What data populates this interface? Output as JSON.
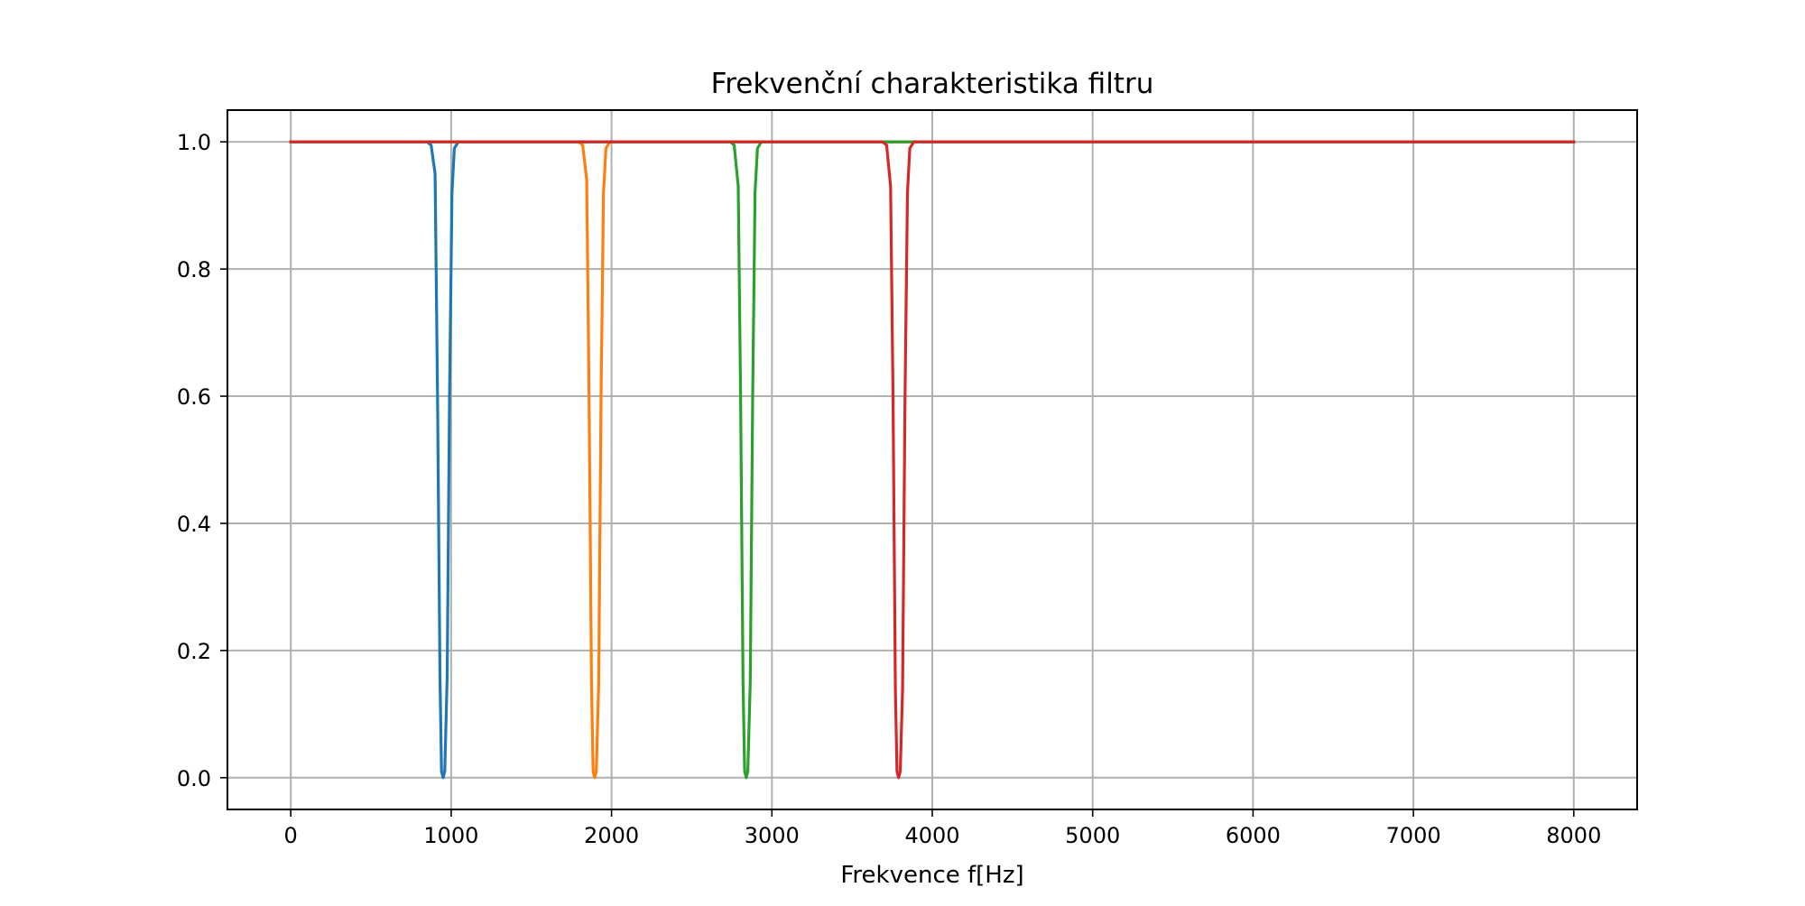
{
  "chart_data": {
    "type": "line",
    "title": "Frekvenční charakteristika filtru",
    "xlabel": "Frekvence f[Hz]",
    "ylabel": "",
    "xlim": [
      -395,
      8395
    ],
    "ylim": [
      -0.05,
      1.05
    ],
    "x_ticks": [
      0,
      1000,
      2000,
      3000,
      4000,
      5000,
      6000,
      7000,
      8000
    ],
    "x_tick_labels": [
      "0",
      "1000",
      "2000",
      "3000",
      "4000",
      "5000",
      "6000",
      "7000",
      "8000"
    ],
    "y_ticks": [
      0.0,
      0.2,
      0.4,
      0.6,
      0.8,
      1.0
    ],
    "y_tick_labels": [
      "0.0",
      "0.2",
      "0.4",
      "0.6",
      "0.8",
      "1.0"
    ],
    "grid": true,
    "legend": "none",
    "series": [
      {
        "color": "#1f77b4",
        "x": [
          0,
          850,
          875,
          900,
          915,
          930,
          940,
          950,
          960,
          975,
          990,
          1005,
          1020,
          1045,
          8000
        ],
        "y": [
          1.0,
          1.0,
          0.995,
          0.95,
          0.6,
          0.16,
          0.01,
          0.0,
          0.01,
          0.16,
          0.6,
          0.92,
          0.99,
          1.0,
          1.0
        ]
      },
      {
        "color": "#ff7f0e",
        "x": [
          0,
          1795,
          1820,
          1845,
          1860,
          1875,
          1885,
          1895,
          1905,
          1920,
          1935,
          1950,
          1965,
          1990,
          8000
        ],
        "y": [
          1.0,
          1.0,
          0.995,
          0.94,
          0.6,
          0.15,
          0.01,
          0.0,
          0.01,
          0.15,
          0.6,
          0.92,
          0.99,
          1.0,
          1.0
        ]
      },
      {
        "color": "#2ca02c",
        "x": [
          0,
          2740,
          2765,
          2790,
          2805,
          2820,
          2830,
          2840,
          2850,
          2865,
          2880,
          2895,
          2910,
          2935,
          8000
        ],
        "y": [
          1.0,
          1.0,
          0.995,
          0.93,
          0.6,
          0.15,
          0.01,
          0.0,
          0.01,
          0.15,
          0.6,
          0.92,
          0.99,
          1.0,
          1.0
        ]
      },
      {
        "color": "#d62728",
        "x": [
          0,
          3690,
          3715,
          3740,
          3755,
          3770,
          3780,
          3790,
          3800,
          3815,
          3830,
          3845,
          3860,
          3885,
          8000
        ],
        "y": [
          1.0,
          1.0,
          0.995,
          0.93,
          0.6,
          0.14,
          0.01,
          0.0,
          0.01,
          0.14,
          0.6,
          0.92,
          0.99,
          1.0,
          1.0
        ]
      }
    ]
  }
}
